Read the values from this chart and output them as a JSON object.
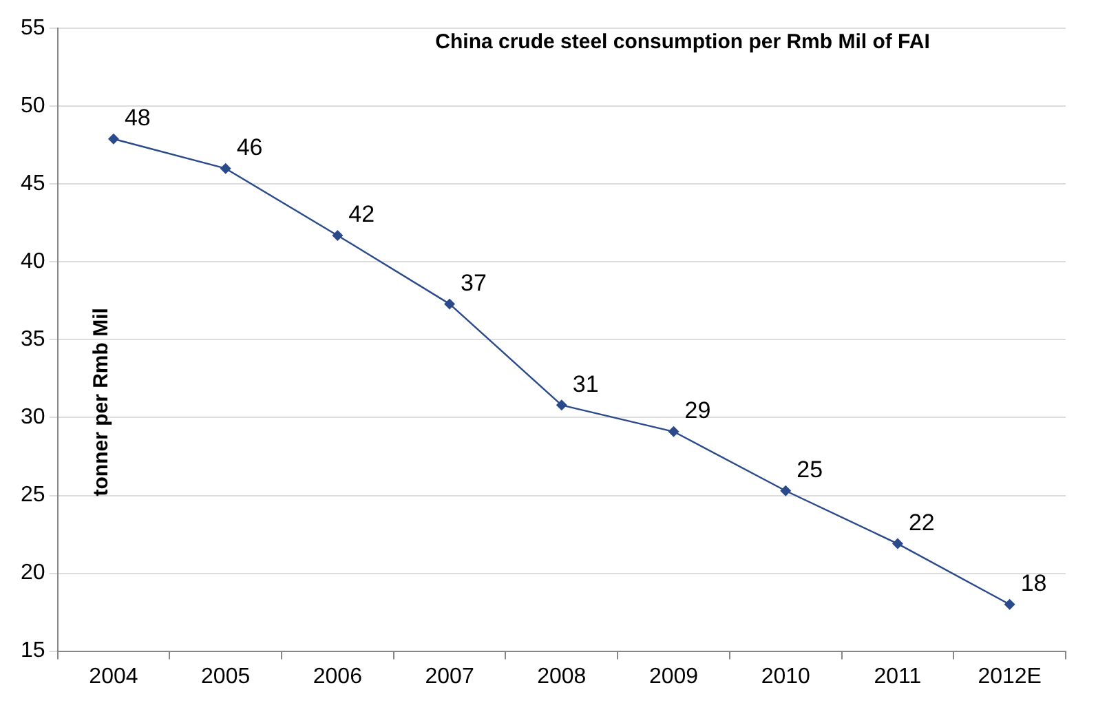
{
  "chart_data": {
    "type": "line",
    "title": "China crude steel consumption per Rmb Mil of FAI",
    "ylabel": "tonner per Rmb Mil",
    "categories": [
      "2004",
      "2005",
      "2006",
      "2007",
      "2008",
      "2009",
      "2010",
      "2011",
      "2012E"
    ],
    "series": [
      {
        "color": "#2b4a8b",
        "values": [
          47.9,
          46,
          41.7,
          37.3,
          30.8,
          29.1,
          25.3,
          21.9,
          18
        ],
        "value_labels": [
          "48",
          "46",
          "42",
          "37",
          "31",
          "29",
          "25",
          "22",
          "18"
        ]
      }
    ],
    "ylim": [
      15,
      55
    ],
    "yticks": [
      15,
      20,
      25,
      30,
      35,
      40,
      45,
      50,
      55
    ],
    "grid": "y",
    "legend": false,
    "marker": "diamond",
    "line_style": "solid"
  }
}
